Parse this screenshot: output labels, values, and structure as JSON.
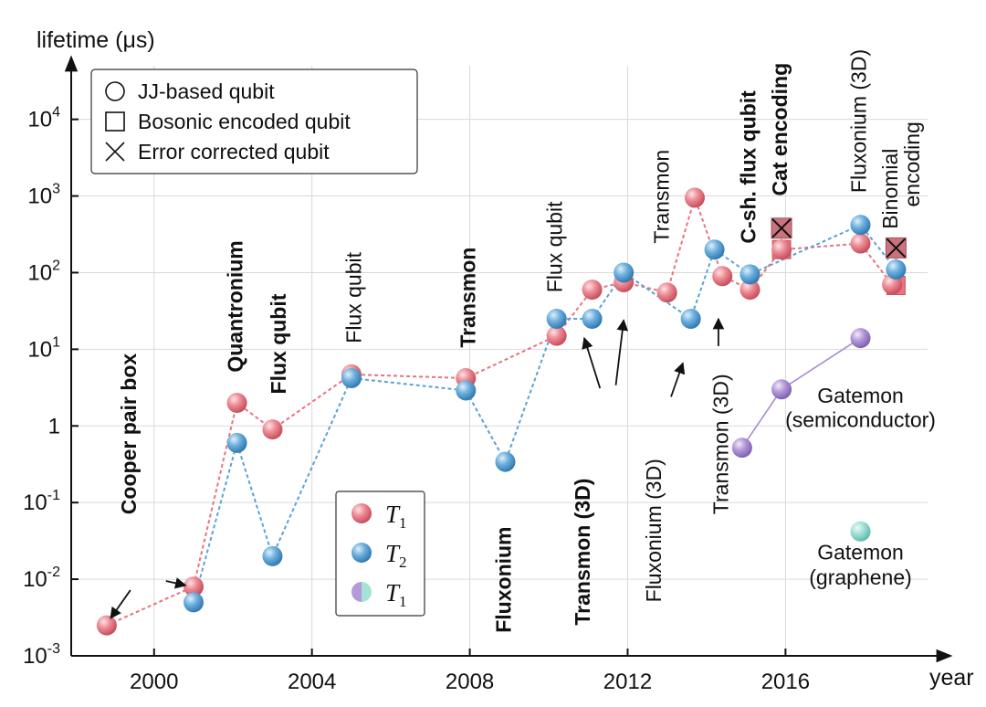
{
  "chart_data": {
    "type": "scatter",
    "title": "",
    "xlabel": "year",
    "ylabel": "lifetime (μs)",
    "xlim": [
      1997.9,
      2019.6
    ],
    "ylim": [
      0.001,
      50000
    ],
    "yscale": "log",
    "grid": true,
    "x_ticks": [
      {
        "value": 2000,
        "label": "2000"
      },
      {
        "value": 2004,
        "label": "2004"
      },
      {
        "value": 2008,
        "label": "2008"
      },
      {
        "value": 2012,
        "label": "2012"
      },
      {
        "value": 2016,
        "label": "2016"
      }
    ],
    "y_ticks": [
      {
        "value": 0.001,
        "base": "10",
        "exp": "-3"
      },
      {
        "value": 0.01,
        "base": "10",
        "exp": "-2"
      },
      {
        "value": 0.1,
        "base": "10",
        "exp": "-1"
      },
      {
        "value": 1,
        "base": "1",
        "exp": ""
      },
      {
        "value": 10,
        "base": "10",
        "exp": "1"
      },
      {
        "value": 100,
        "base": "10",
        "exp": "2"
      },
      {
        "value": 1000,
        "base": "10",
        "exp": "3"
      },
      {
        "value": 10000,
        "base": "10",
        "exp": "4"
      }
    ],
    "marker_legend": {
      "placement": "top-left",
      "items": [
        {
          "marker": "circle",
          "label": "JJ-based qubit"
        },
        {
          "marker": "square",
          "label": "Bosonic encoded qubit"
        },
        {
          "marker": "cross",
          "label": "Error corrected qubit"
        }
      ]
    },
    "series_legend": {
      "placement": "center-left",
      "items": [
        {
          "series": "T1",
          "symbol": "T",
          "sub": "1"
        },
        {
          "series": "T2",
          "symbol": "T",
          "sub": "2"
        },
        {
          "series": "T1_gatemon",
          "symbol": "T",
          "sub": "1"
        }
      ]
    },
    "series": [
      {
        "name": "T1",
        "color": "#e8737e",
        "marker": "circle",
        "points": [
          {
            "x": 1998.8,
            "y": 0.0025
          },
          {
            "x": 2001.0,
            "y": 0.008
          },
          {
            "x": 2002.1,
            "y": 2
          },
          {
            "x": 2003.0,
            "y": 0.9
          },
          {
            "x": 2005.0,
            "y": 4.7
          },
          {
            "x": 2007.9,
            "y": 4.2
          },
          {
            "x": 2010.2,
            "y": 15
          },
          {
            "x": 2011.1,
            "y": 60
          },
          {
            "x": 2011.9,
            "y": 75
          },
          {
            "x": 2013.0,
            "y": 55
          },
          {
            "x": 2013.7,
            "y": 950
          },
          {
            "x": 2014.4,
            "y": 90
          },
          {
            "x": 2015.1,
            "y": 60
          },
          {
            "x": 2015.9,
            "y": 200
          },
          {
            "x": 2017.9,
            "y": 240
          },
          {
            "x": 2018.7,
            "y": 70
          }
        ]
      },
      {
        "name": "T2",
        "color": "#5aa2d4",
        "marker": "circle",
        "points": [
          {
            "x": 2001.0,
            "y": 0.005
          },
          {
            "x": 2002.1,
            "y": 0.6
          },
          {
            "x": 2003.0,
            "y": 0.02
          },
          {
            "x": 2005.0,
            "y": 4.2
          },
          {
            "x": 2007.9,
            "y": 2.9
          },
          {
            "x": 2008.9,
            "y": 0.34
          },
          {
            "x": 2010.2,
            "y": 25
          },
          {
            "x": 2011.1,
            "y": 25
          },
          {
            "x": 2011.9,
            "y": 100
          },
          {
            "x": 2013.6,
            "y": 25
          },
          {
            "x": 2014.2,
            "y": 200
          },
          {
            "x": 2015.1,
            "y": 95
          },
          {
            "x": 2017.9,
            "y": 420
          },
          {
            "x": 2018.8,
            "y": 110
          }
        ]
      },
      {
        "name": "T1_gatemon",
        "color": "#a78ad0",
        "marker": "circle",
        "points": [
          {
            "x": 2014.9,
            "y": 0.52
          },
          {
            "x": 2015.9,
            "y": 3
          },
          {
            "x": 2017.9,
            "y": 14
          }
        ]
      },
      {
        "name": "T1_graphene",
        "color": "#8fd8cc",
        "marker": "circle",
        "points": [
          {
            "x": 2017.9,
            "y": 0.042
          }
        ]
      }
    ],
    "bosonic_points": [
      {
        "x": 2015.9,
        "y": 200,
        "color": "#e8737e"
      },
      {
        "x": 2018.8,
        "y": 68,
        "color": "#e8737e"
      }
    ],
    "error_corrected_points": [
      {
        "x": 2015.9,
        "y": 380
      },
      {
        "x": 2018.8,
        "y": 210
      }
    ],
    "annotations": [
      {
        "text": "Cooper pair box",
        "bold": true,
        "x": 1999.4,
        "y": 0.07,
        "rotate": -90
      },
      {
        "text": "Quantronium",
        "bold": true,
        "x": 2002.1,
        "y": 5,
        "rotate": -90
      },
      {
        "text": "Flux qubit",
        "bold": true,
        "x": 2003.2,
        "y": 2.6,
        "rotate": -90
      },
      {
        "text": "Flux qubit",
        "bold": false,
        "x": 2005.1,
        "y": 12,
        "rotate": -90
      },
      {
        "text": "Transmon",
        "bold": true,
        "x": 2008.0,
        "y": 10.5,
        "rotate": -90
      },
      {
        "text": "Fluxonium",
        "bold": true,
        "x": 2008.9,
        "y": 0.002,
        "rotate": -90
      },
      {
        "text": "Flux qubit",
        "bold": false,
        "x": 2010.2,
        "y": 55,
        "rotate": -90
      },
      {
        "text": "Transmon (3D)",
        "bold": true,
        "x": 2010.9,
        "y": 0.0025,
        "rotate": -90
      },
      {
        "text": "Transmon",
        "bold": false,
        "x": 2012.9,
        "y": 240,
        "rotate": -90
      },
      {
        "text": "Fluxonium (3D)",
        "bold": false,
        "x": 2012.7,
        "y": 0.005,
        "rotate": -90
      },
      {
        "text": "Transmon (3D)",
        "bold": false,
        "x": 2014.4,
        "y": 0.07,
        "rotate": -90
      },
      {
        "text": "C-sh. flux qubit",
        "bold": true,
        "x": 2015.1,
        "y": 240,
        "rotate": -90
      },
      {
        "text": "Cat encoding",
        "bold": true,
        "x": 2015.9,
        "y": 1000,
        "rotate": -90
      },
      {
        "text": "Fluxonium (3D)",
        "bold": false,
        "x": 2017.9,
        "y": 1100,
        "rotate": -90
      },
      {
        "text": "Binomial",
        "bold": false,
        "x": 2018.7,
        "y": 370,
        "rotate": -90
      },
      {
        "text": "encoding",
        "bold": false,
        "x": 2019.25,
        "y": 720,
        "rotate": -90
      },
      {
        "text": "Gatemon",
        "bold": false,
        "x": 2017.9,
        "y": 2.0,
        "rotate": 0
      },
      {
        "text": "(semiconductor)",
        "bold": false,
        "x": 2017.9,
        "y": 0.97,
        "rotate": 0
      },
      {
        "text": "Gatemon",
        "bold": false,
        "x": 2017.9,
        "y": 0.018,
        "rotate": 0
      },
      {
        "text": "(graphene)",
        "bold": false,
        "x": 2017.9,
        "y": 0.0085,
        "rotate": 0
      }
    ],
    "arrows": [
      {
        "from": {
          "x": 1999.4,
          "y": 0.0072
        },
        "to": {
          "x": 1998.9,
          "y": 0.0031
        }
      },
      {
        "from": {
          "x": 2000.3,
          "y": 0.0095
        },
        "to": {
          "x": 2000.8,
          "y": 0.0083
        }
      },
      {
        "from": {
          "x": 2011.3,
          "y": 3.1
        },
        "to": {
          "x": 2010.9,
          "y": 14
        }
      },
      {
        "from": {
          "x": 2011.7,
          "y": 3.4
        },
        "to": {
          "x": 2011.9,
          "y": 24
        }
      },
      {
        "from": {
          "x": 2013.1,
          "y": 2.4
        },
        "to": {
          "x": 2013.4,
          "y": 6.6
        }
      },
      {
        "from": {
          "x": 2014.3,
          "y": 11
        },
        "to": {
          "x": 2014.3,
          "y": 25
        }
      }
    ]
  }
}
